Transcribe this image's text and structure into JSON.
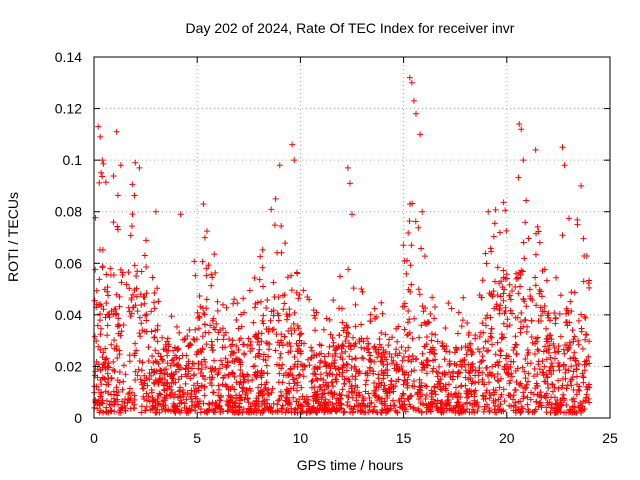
{
  "chart_data": {
    "type": "scatter",
    "title": "Day 202 of 2024, Rate Of TEC Index for receiver invr",
    "xlabel": "GPS time / hours",
    "ylabel": "ROTI / TECUs",
    "xlim": [
      0,
      25
    ],
    "ylim": [
      0,
      0.14
    ],
    "xticks": [
      0,
      5,
      10,
      15,
      20,
      25
    ],
    "xtick_labels": [
      "0",
      "5",
      "10",
      "15",
      "20",
      "25"
    ],
    "yticks": [
      0,
      0.02,
      0.04,
      0.06,
      0.08,
      0.1,
      0.12,
      0.14
    ],
    "ytick_labels": [
      "0",
      "0.02",
      "0.04",
      "0.06",
      "0.08",
      "0.1",
      "0.12",
      "0.14"
    ],
    "grid": true,
    "marker": "+",
    "marker_color": "#ff0000",
    "series": [
      {
        "name": "ROTI",
        "x_range": [
          0,
          24
        ],
        "bulk_range": [
          0.002,
          0.05
        ],
        "notable_points": [
          {
            "x": 0.2,
            "y": 0.113
          },
          {
            "x": 0.3,
            "y": 0.109
          },
          {
            "x": 0.4,
            "y": 0.1
          },
          {
            "x": 1.1,
            "y": 0.111
          },
          {
            "x": 1.3,
            "y": 0.098
          },
          {
            "x": 2.0,
            "y": 0.099
          },
          {
            "x": 2.2,
            "y": 0.097
          },
          {
            "x": 3.0,
            "y": 0.08
          },
          {
            "x": 4.2,
            "y": 0.079
          },
          {
            "x": 5.3,
            "y": 0.083
          },
          {
            "x": 8.8,
            "y": 0.085
          },
          {
            "x": 9.0,
            "y": 0.098
          },
          {
            "x": 9.6,
            "y": 0.106
          },
          {
            "x": 9.7,
            "y": 0.1
          },
          {
            "x": 12.3,
            "y": 0.097
          },
          {
            "x": 12.4,
            "y": 0.091
          },
          {
            "x": 12.5,
            "y": 0.079
          },
          {
            "x": 15.3,
            "y": 0.132
          },
          {
            "x": 15.4,
            "y": 0.13
          },
          {
            "x": 15.5,
            "y": 0.123
          },
          {
            "x": 15.6,
            "y": 0.118
          },
          {
            "x": 15.8,
            "y": 0.11
          },
          {
            "x": 15.9,
            "y": 0.08
          },
          {
            "x": 19.1,
            "y": 0.08
          },
          {
            "x": 20.6,
            "y": 0.114
          },
          {
            "x": 20.7,
            "y": 0.112
          },
          {
            "x": 20.8,
            "y": 0.1
          },
          {
            "x": 21.4,
            "y": 0.104
          },
          {
            "x": 22.7,
            "y": 0.105
          },
          {
            "x": 22.8,
            "y": 0.098
          },
          {
            "x": 23.6,
            "y": 0.09
          }
        ]
      }
    ]
  }
}
